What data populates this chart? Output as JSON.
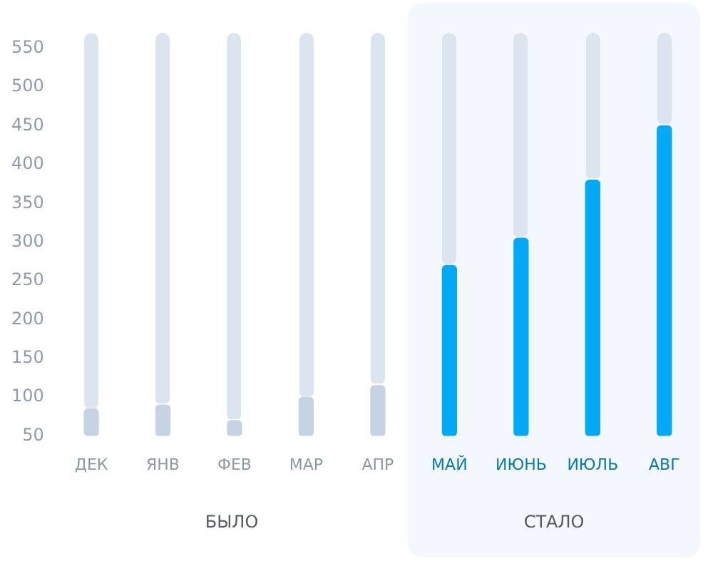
{
  "chart_data": {
    "type": "bar",
    "categories": [
      "ДЕК",
      "ЯНВ",
      "ФЕВ",
      "МАР",
      "АПР",
      "МАЙ",
      "ИЮНЬ",
      "ИЮЛЬ",
      "АВГ"
    ],
    "values": [
      85,
      90,
      70,
      100,
      115,
      270,
      305,
      380,
      450
    ],
    "colors": [
      "#c5d3e4",
      "#c5d3e4",
      "#c5d3e4",
      "#c5d3e4",
      "#c5d3e4",
      "#03a9f4",
      "#03a9f4",
      "#03a9f4",
      "#03a9f4"
    ],
    "ylim": [
      50,
      570
    ],
    "yticks": [
      50,
      100,
      150,
      200,
      250,
      300,
      350,
      400,
      450,
      500,
      550
    ],
    "grid": false,
    "bands": [
      {
        "axis": "x",
        "from": "МАЙ",
        "to": "АВГ",
        "label": "СТАЛО",
        "color": "#f3f8fe"
      }
    ],
    "annotations": [
      "БЫЛО"
    ]
  }
}
